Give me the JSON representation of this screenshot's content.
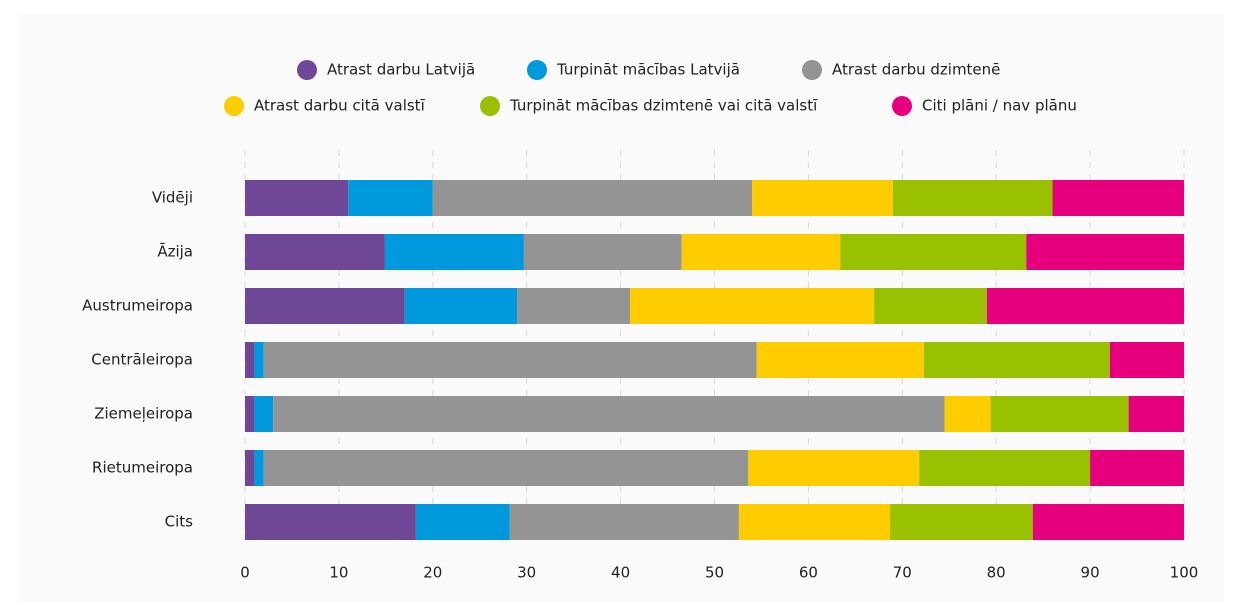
{
  "chart_data": {
    "type": "stacked-bar-horizontal",
    "categories": [
      "Vidēji",
      "Āzija",
      "Austrumeiropa",
      "Centrāleiropa",
      "Ziemeļeiropa",
      "Rietumeiropa",
      "Cits"
    ],
    "series": [
      {
        "name": "Atrast darbu Latvijā",
        "color": "#6e4796",
        "values": [
          11,
          14.9,
          17,
          1,
          1,
          1,
          18.2
        ]
      },
      {
        "name": "Turpināt mācības Latvijā",
        "color": "#0099dd",
        "values": [
          9,
          14.8,
          12,
          1,
          2,
          1,
          10
        ]
      },
      {
        "name": "Atrast darbu dzimtenē",
        "color": "#949494",
        "values": [
          34,
          16.8,
          12,
          52.5,
          71.5,
          51.6,
          24.4
        ]
      },
      {
        "name": "Atrast darbu citā valstī",
        "color": "#ffcc00",
        "values": [
          15,
          16.9,
          26,
          17.8,
          4.9,
          18.2,
          16.1
        ]
      },
      {
        "name": "Turpināt mācības dzimtenē vai citā valstī",
        "color": "#99c100",
        "values": [
          17,
          19.8,
          12,
          19.8,
          14.7,
          18.2,
          15.2
        ]
      },
      {
        "name": "Citi plāni / nav plānu",
        "color": "#e6007e",
        "values": [
          14,
          16.8,
          21,
          7.9,
          5.9,
          10,
          16.1
        ]
      }
    ],
    "xlim": [
      0,
      100
    ],
    "xticks": [
      0,
      10,
      20,
      30,
      40,
      50,
      60,
      70,
      80,
      90,
      100
    ],
    "grid": true,
    "legend": "top"
  }
}
